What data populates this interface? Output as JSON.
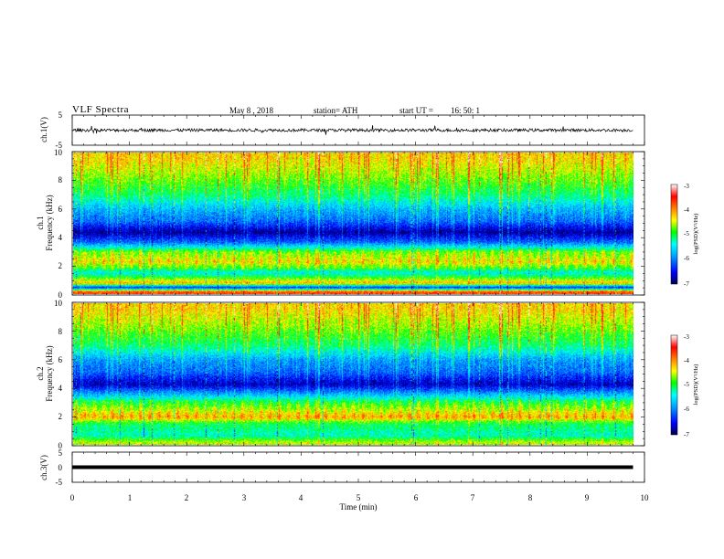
{
  "header": {
    "title": "VLF  Spectra",
    "date": "May 8   , 2018",
    "station": "station= ATH",
    "start_label": "start  UT  =",
    "start_time": "16: 50: 1"
  },
  "panels": {
    "ch1_voltage": {
      "ylabel": "ch.1(V)",
      "ticks": [
        "5",
        "-5"
      ]
    },
    "ch1_spec": {
      "ylabel_top": "ch.1",
      "ylabel_bottom": "Frequency  (kHz)",
      "ticks": [
        "10",
        "8",
        "6",
        "4",
        "2",
        "0"
      ]
    },
    "ch2_spec": {
      "ylabel_top": "ch.2",
      "ylabel_bottom": "Frequency  (kHz)",
      "ticks": [
        "10",
        "8",
        "6",
        "4",
        "2",
        "0"
      ]
    },
    "ch3_voltage": {
      "ylabel": "ch.3(V)",
      "ticks": [
        "5",
        "0",
        "-5"
      ]
    }
  },
  "xaxis": {
    "label": "Time  (min)",
    "ticks": [
      "0",
      "1",
      "2",
      "3",
      "4",
      "5",
      "6",
      "7",
      "8",
      "9",
      "10"
    ]
  },
  "colorbars": [
    {
      "ticks": [
        "-3",
        "-4",
        "-5",
        "-6",
        "-7"
      ],
      "label": "log(PSD)(V²/Hz)"
    },
    {
      "ticks": [
        "-3",
        "-4",
        "-5",
        "-6",
        "-7"
      ],
      "label": "log(PSD)(V²/Hz)"
    }
  ],
  "chart_data": {
    "type": "heatmap",
    "title": "VLF  Spectra",
    "xlabel": "Time  (min)",
    "ylabel": "Frequency  (kHz)",
    "xlim": [
      0,
      10
    ],
    "ylim": [
      0,
      10
    ],
    "data_end_min": 9.8,
    "colorbar": {
      "label": "log(PSD)(V²/Hz)",
      "range": [
        -7,
        -3
      ],
      "colormap": [
        "#000050",
        "#0000ff",
        "#00a0ff",
        "#00ffff",
        "#00ff00",
        "#ffff00",
        "#ff8000",
        "#ff0000",
        "#ffffff"
      ]
    },
    "channels": [
      {
        "name": "ch.1",
        "band_profile_log_psd": [
          {
            "f_khz": 0.2,
            "v": -3.8
          },
          {
            "f_khz": 0.5,
            "v": -6.5
          },
          {
            "f_khz": 0.8,
            "v": -4.2
          },
          {
            "f_khz": 1.5,
            "v": -5.5
          },
          {
            "f_khz": 2.3,
            "v": -4.5
          },
          {
            "f_khz": 3.0,
            "v": -4.9
          },
          {
            "f_khz": 3.7,
            "v": -6.2
          },
          {
            "f_khz": 4.4,
            "v": -6.9
          },
          {
            "f_khz": 5.2,
            "v": -6.2
          },
          {
            "f_khz": 6.0,
            "v": -5.9
          },
          {
            "f_khz": 7.0,
            "v": -5.3
          },
          {
            "f_khz": 8.5,
            "v": -4.8
          },
          {
            "f_khz": 9.6,
            "v": -4.5
          }
        ]
      },
      {
        "name": "ch.2",
        "band_profile_log_psd": [
          {
            "f_khz": 0.2,
            "v": -4.6
          },
          {
            "f_khz": 0.7,
            "v": -5.4
          },
          {
            "f_khz": 1.5,
            "v": -5.1
          },
          {
            "f_khz": 2.0,
            "v": -4.3
          },
          {
            "f_khz": 2.5,
            "v": -4.7
          },
          {
            "f_khz": 3.2,
            "v": -5.3
          },
          {
            "f_khz": 4.3,
            "v": -6.8
          },
          {
            "f_khz": 5.2,
            "v": -6.2
          },
          {
            "f_khz": 6.0,
            "v": -6.0
          },
          {
            "f_khz": 7.0,
            "v": -5.3
          },
          {
            "f_khz": 8.5,
            "v": -4.8
          },
          {
            "f_khz": 9.6,
            "v": -4.5
          }
        ]
      }
    ],
    "voltage_traces": [
      {
        "name": "ch.1(V)",
        "ylim": [
          -5,
          5
        ],
        "level_v": 0,
        "noise_v": 0.5
      },
      {
        "name": "ch.3(V)",
        "ylim": [
          -5,
          5
        ],
        "level_v": 0,
        "noise_v": 0
      }
    ]
  }
}
